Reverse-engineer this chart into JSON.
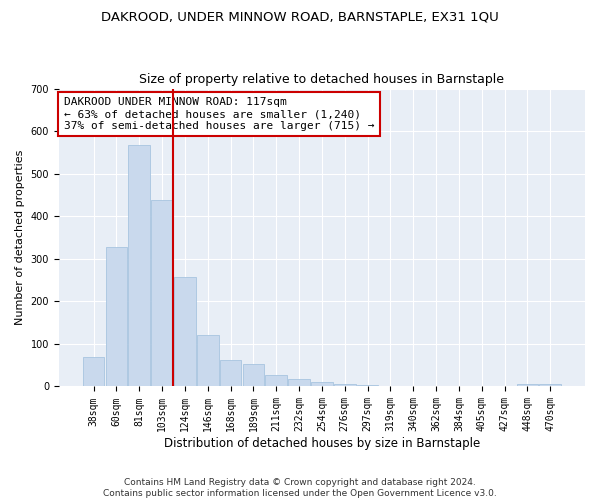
{
  "title1": "DAKROOD, UNDER MINNOW ROAD, BARNSTAPLE, EX31 1QU",
  "title2": "Size of property relative to detached houses in Barnstaple",
  "xlabel": "Distribution of detached houses by size in Barnstaple",
  "ylabel": "Number of detached properties",
  "footnote": "Contains HM Land Registry data © Crown copyright and database right 2024.\nContains public sector information licensed under the Open Government Licence v3.0.",
  "annotation_lines": [
    "DAKROOD UNDER MINNOW ROAD: 117sqm",
    "← 63% of detached houses are smaller (1,240)",
    "37% of semi-detached houses are larger (715) →"
  ],
  "bin_labels": [
    "38sqm",
    "60sqm",
    "81sqm",
    "103sqm",
    "124sqm",
    "146sqm",
    "168sqm",
    "189sqm",
    "211sqm",
    "232sqm",
    "254sqm",
    "276sqm",
    "297sqm",
    "319sqm",
    "340sqm",
    "362sqm",
    "384sqm",
    "405sqm",
    "427sqm",
    "448sqm",
    "470sqm"
  ],
  "bar_heights": [
    70,
    328,
    568,
    437,
    258,
    122,
    62,
    53,
    28,
    17,
    11,
    5,
    3,
    2,
    1,
    0,
    0,
    0,
    0,
    5,
    5
  ],
  "bar_color": "#c9d9ed",
  "bar_edge_color": "#a8c4e0",
  "vline_x": 3.5,
  "vline_color": "#cc0000",
  "ylim": [
    0,
    700
  ],
  "yticks": [
    0,
    100,
    200,
    300,
    400,
    500,
    600,
    700
  ],
  "bg_color": "#e8eef6",
  "grid_color": "#ffffff",
  "title1_fontsize": 9.5,
  "title2_fontsize": 9,
  "annotation_fontsize": 8,
  "tick_fontsize": 7,
  "xlabel_fontsize": 8.5,
  "ylabel_fontsize": 8,
  "footnote_fontsize": 6.5
}
